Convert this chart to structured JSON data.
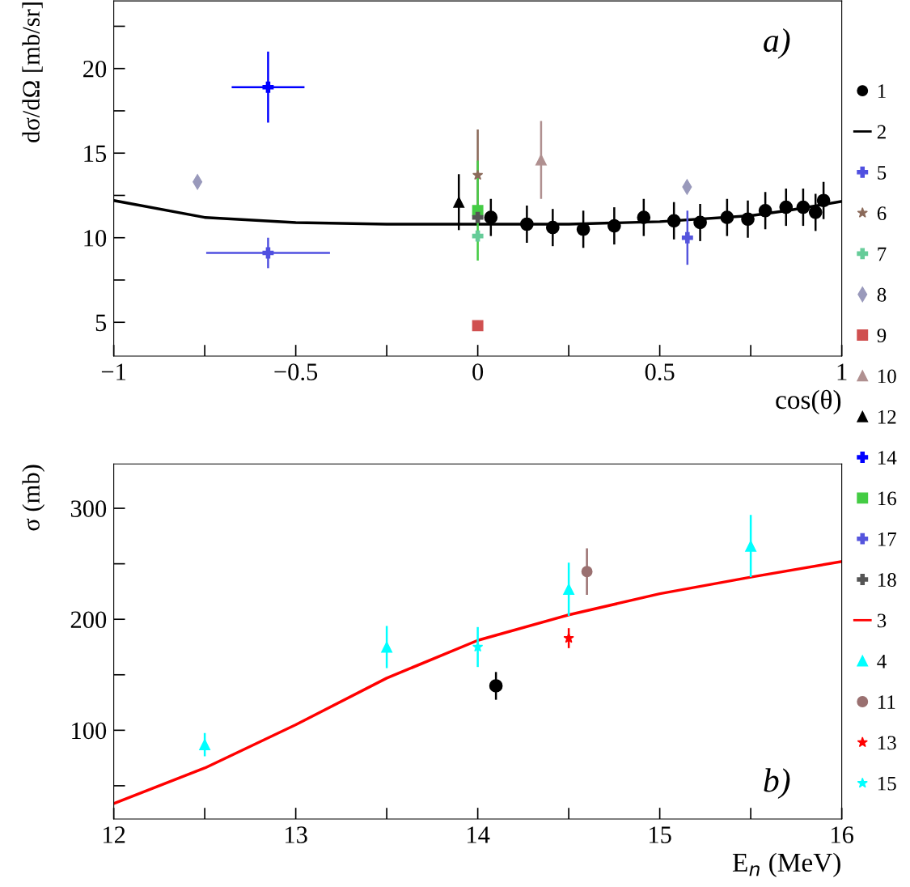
{
  "chart_data": [
    {
      "type": "scatter",
      "ylabel": "dσ/dΩ [mb/sr]",
      "xlabel": "cos(θ)",
      "annotations": [
        "a)"
      ],
      "xlim": [
        -1,
        1
      ],
      "ylim": [
        3,
        24
      ],
      "xticks": [
        {
          "value": -1,
          "label": "−1"
        },
        {
          "value": -0.75,
          "label": null
        },
        {
          "value": -0.5,
          "label": "−0.5"
        },
        {
          "value": -0.25,
          "label": null
        },
        0,
        {
          "value": 0.25,
          "label": null
        },
        0.5,
        {
          "value": 0.75,
          "label": null
        },
        1
      ],
      "yticks": [
        5,
        {
          "value": 7.5,
          "label": null
        },
        10,
        {
          "value": 12.5,
          "label": null
        },
        15,
        {
          "value": 17.5,
          "label": null
        },
        20,
        {
          "value": 22.5,
          "label": null
        }
      ],
      "grid": false,
      "legend": "right",
      "series": [
        {
          "name": "1",
          "marker": "circle",
          "color": "#000000",
          "x": [
            0.036,
            0.135,
            0.206,
            0.29,
            0.375,
            0.456,
            0.539,
            0.611,
            0.685,
            0.742,
            0.79,
            0.847,
            0.894,
            0.928,
            0.95
          ],
          "values": [
            11.2,
            10.8,
            10.6,
            10.5,
            10.7,
            11.2,
            11.0,
            10.9,
            11.2,
            11.1,
            11.6,
            11.8,
            11.8,
            11.5,
            12.2
          ],
          "errors": [
            1.1,
            1.1,
            1.1,
            1.1,
            1.1,
            1.1,
            1.1,
            1.1,
            1.1,
            1.1,
            1.1,
            1.1,
            1.1,
            1.1,
            1.1
          ]
        },
        {
          "name": "2",
          "type": "line",
          "marker": "none",
          "line_style": "solid",
          "color": "#000000",
          "x": [
            -1,
            -0.75,
            -0.5,
            -0.25,
            0,
            0.25,
            0.5,
            0.75,
            0.85,
            1
          ],
          "values": [
            12.2,
            11.2,
            10.9,
            10.8,
            10.8,
            10.8,
            10.95,
            11.3,
            11.6,
            12.15
          ]
        },
        {
          "name": "5",
          "marker": "cross",
          "color": "#5050e0",
          "x": [
            -0.576
          ],
          "values": [
            9.1
          ],
          "errors": [
            0.9
          ],
          "xerrors": [
            0.17
          ]
        },
        {
          "name": "6",
          "marker": "star",
          "color": "#8b6a5a",
          "x": [
            0
          ],
          "values": [
            13.7
          ],
          "errors": [
            2.7
          ]
        },
        {
          "name": "7",
          "marker": "cross",
          "color": "#66cc99",
          "x": [
            0
          ],
          "values": [
            10.1
          ]
        },
        {
          "name": "8",
          "marker": "diamond",
          "color": "#9999bb",
          "x": [
            -0.77,
            0.575
          ],
          "values": [
            13.3,
            13.0
          ]
        },
        {
          "name": "9",
          "marker": "square",
          "color": "#d05050",
          "x": [
            0
          ],
          "values": [
            4.8
          ],
          "errors": [
            0.3
          ]
        },
        {
          "name": "10",
          "marker": "triangle",
          "color": "#b09090",
          "x": [
            0.174
          ],
          "values": [
            14.6
          ],
          "errors": [
            2.3
          ]
        },
        {
          "name": "12",
          "marker": "triangle",
          "color": "#000000",
          "x": [
            -0.052
          ],
          "values": [
            12.1
          ],
          "errors": [
            1.65
          ]
        },
        {
          "name": "14",
          "marker": "cross",
          "color": "#0000ff",
          "x": [
            -0.576
          ],
          "values": [
            18.9
          ],
          "errors": [
            2.1
          ],
          "xerrors": [
            0.1
          ]
        },
        {
          "name": "16",
          "marker": "square",
          "color": "#44cc44",
          "x": [
            0
          ],
          "values": [
            11.6
          ],
          "errors": [
            2.95
          ]
        },
        {
          "name": "17",
          "marker": "cross",
          "color": "#5555dd",
          "x": [
            0.576
          ],
          "values": [
            10.0
          ],
          "errors": [
            1.6
          ]
        },
        {
          "name": "18",
          "marker": "cross",
          "color": "#555555",
          "x": [
            0
          ],
          "values": [
            11.2
          ]
        }
      ]
    },
    {
      "type": "scatter",
      "ylabel": "σ (mb)",
      "xlabel": "E$_{n}$ (MeV)",
      "annotations": [
        "b)"
      ],
      "xlim": [
        12,
        16
      ],
      "ylim": [
        20,
        340
      ],
      "xticks": [
        12,
        {
          "value": 12.5,
          "label": null
        },
        13,
        {
          "value": 13.5,
          "label": null
        },
        14,
        {
          "value": 14.5,
          "label": null
        },
        15,
        {
          "value": 15.5,
          "label": null
        },
        16
      ],
      "yticks": [
        {
          "value": 50,
          "label": null
        },
        100,
        {
          "value": 150,
          "label": null
        },
        200,
        {
          "value": 250,
          "label": null
        },
        300
      ],
      "grid": false,
      "legend": "right",
      "series": [
        {
          "name": "1",
          "marker": "circle",
          "color": "#000000",
          "x": [
            14.1
          ],
          "values": [
            140
          ],
          "errors": [
            12.5
          ]
        },
        {
          "name": "3",
          "type": "line",
          "marker": "none",
          "line_style": "solid",
          "color": "#ff0000",
          "x": [
            12,
            12.5,
            13,
            13.5,
            14,
            14.5,
            15,
            15.5,
            16
          ],
          "values": [
            34,
            66,
            105,
            147,
            181,
            204,
            223,
            238,
            252
          ]
        },
        {
          "name": "4",
          "marker": "triangle",
          "color": "#00ffff",
          "x": [
            12.5,
            13.5,
            14.5,
            15.5
          ],
          "values": [
            87,
            175,
            227,
            266
          ],
          "errors": [
            10.5,
            19,
            24,
            28
          ]
        },
        {
          "name": "11",
          "marker": "circle",
          "color": "#9a7070",
          "x": [
            14.6
          ],
          "values": [
            243
          ],
          "errors": [
            21
          ]
        },
        {
          "name": "13",
          "marker": "star",
          "color": "#ff0000",
          "x": [
            14.5
          ],
          "values": [
            183
          ],
          "errors": [
            9
          ]
        },
        {
          "name": "15",
          "marker": "star",
          "color": "#00ffff",
          "x": [
            14.0
          ],
          "values": [
            175
          ],
          "errors": [
            18
          ]
        }
      ]
    }
  ]
}
